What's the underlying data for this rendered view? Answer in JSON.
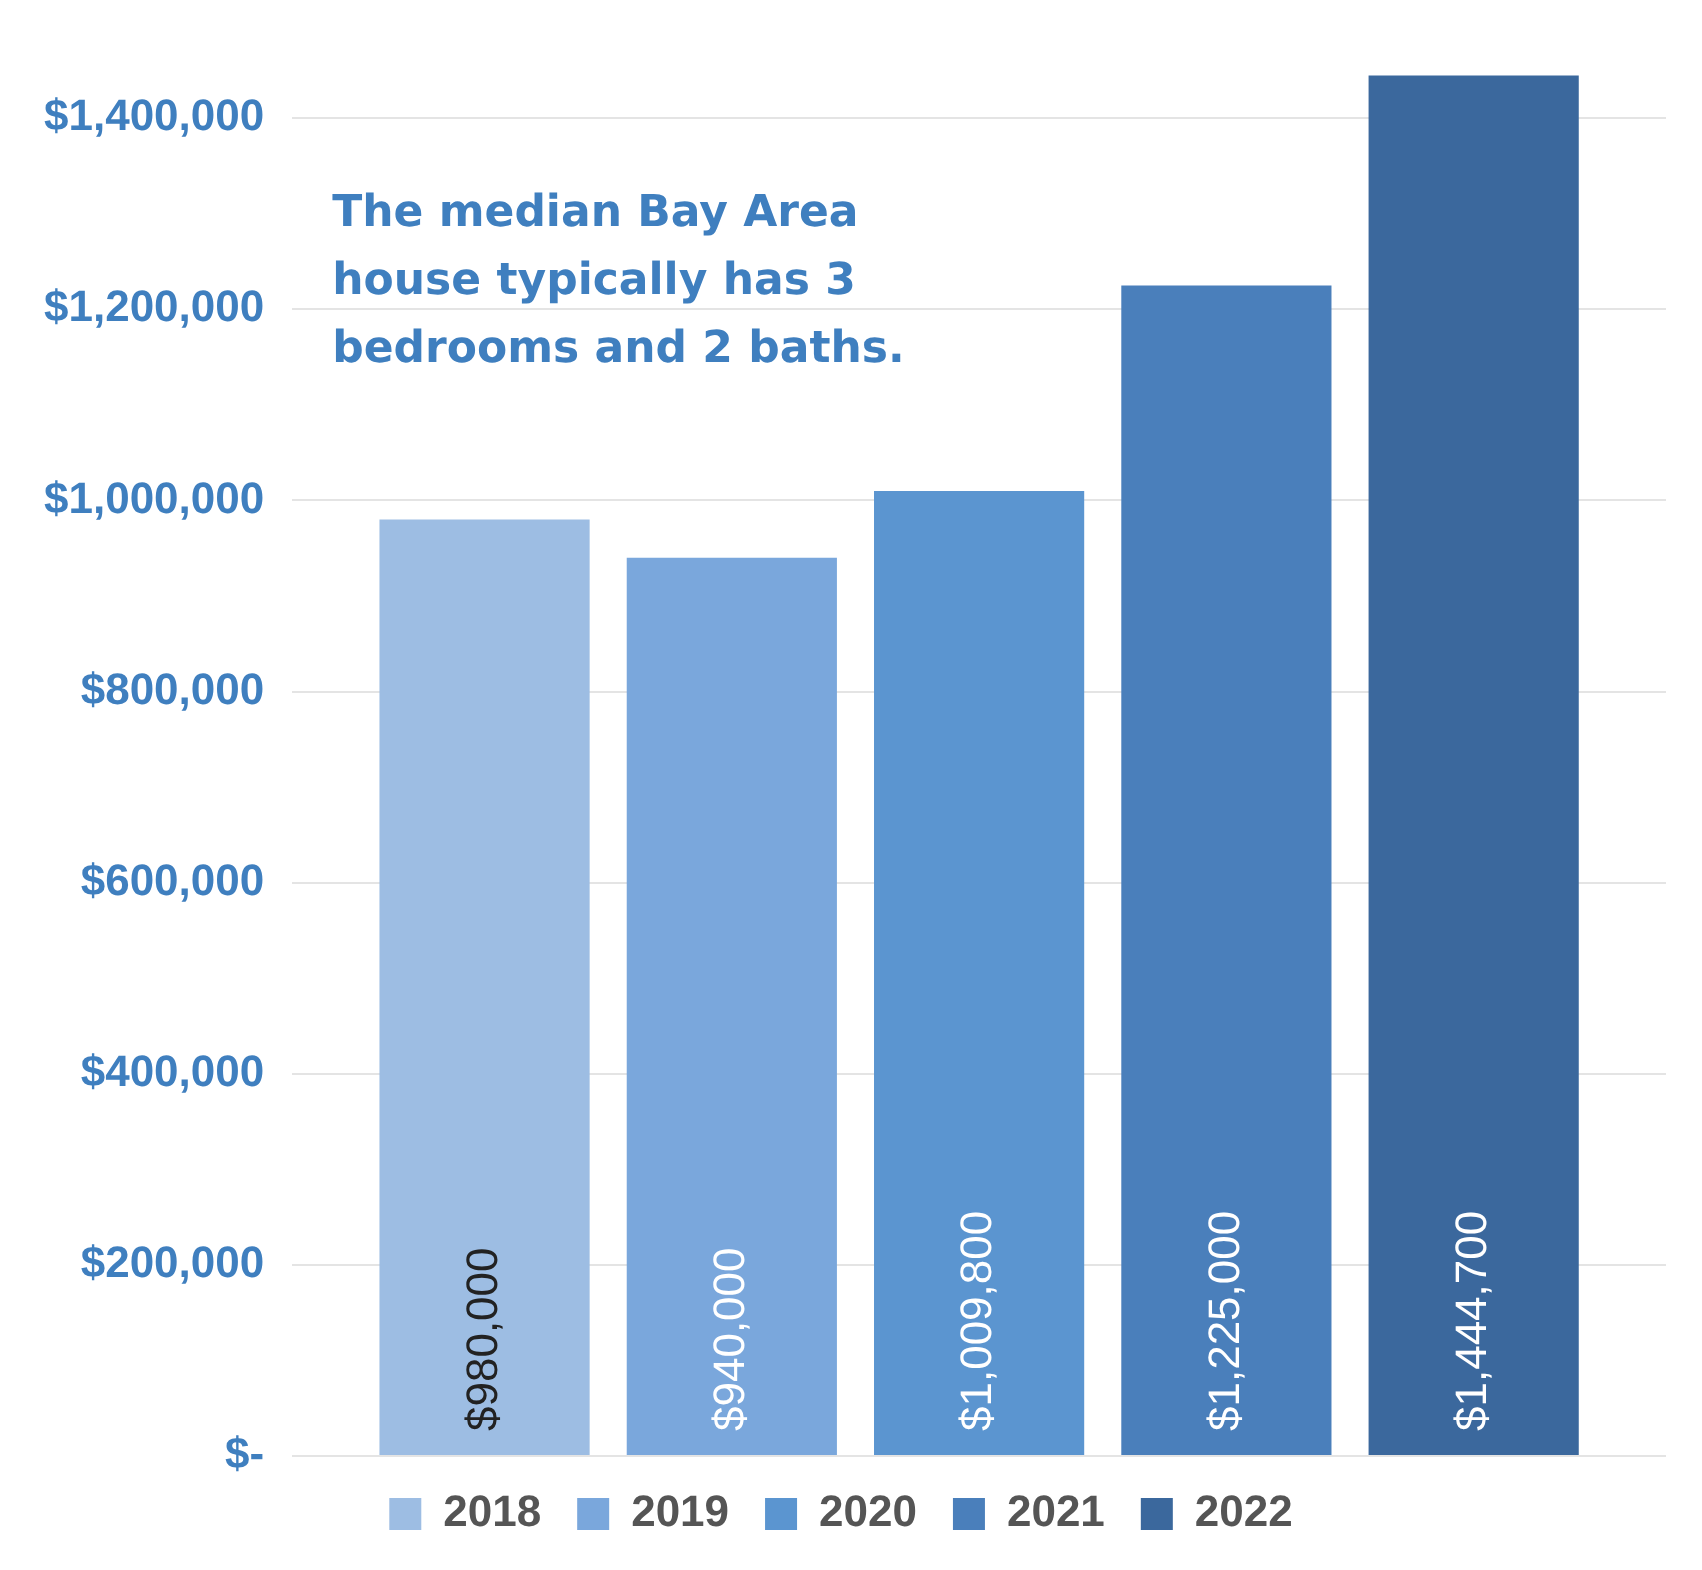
{
  "chart_data": {
    "type": "bar",
    "categories": [
      null
    ],
    "series": [
      {
        "name": "2018",
        "color": "#9dbde3",
        "values": [
          980000
        ]
      },
      {
        "name": "2019",
        "color": "#7aa7dc",
        "values": [
          940000
        ]
      },
      {
        "name": "2020",
        "color": "#5b95d0",
        "values": [
          1009800
        ]
      },
      {
        "name": "2021",
        "color": "#4a7fbb",
        "values": [
          1225000
        ]
      },
      {
        "name": "2022",
        "color": "#3b689d",
        "values": [
          1444700
        ]
      }
    ],
    "ylim": [
      0,
      1450000
    ],
    "yticks": [
      {
        "value": 0,
        "label": "$-"
      },
      {
        "value": 200000,
        "label": "$200,000"
      },
      {
        "value": 400000,
        "label": "$400,000"
      },
      {
        "value": 600000,
        "label": "$600,000"
      },
      {
        "value": 800000,
        "label": "$800,000"
      },
      {
        "value": 1000000,
        "label": "$1,000,000"
      },
      {
        "value": 1200000,
        "label": "$1,200,000"
      },
      {
        "value": 1400000,
        "label": "$1,400,000"
      }
    ],
    "value_labels": [
      "$980,000",
      "$940,000",
      "$1,009,800",
      "$1,225,000",
      "$1,444,700"
    ],
    "annotations": [
      "The median Bay Area house typically has 3 bedrooms and 2 baths."
    ],
    "grid": "y",
    "legend": "bottom",
    "tick_labels": "y"
  }
}
